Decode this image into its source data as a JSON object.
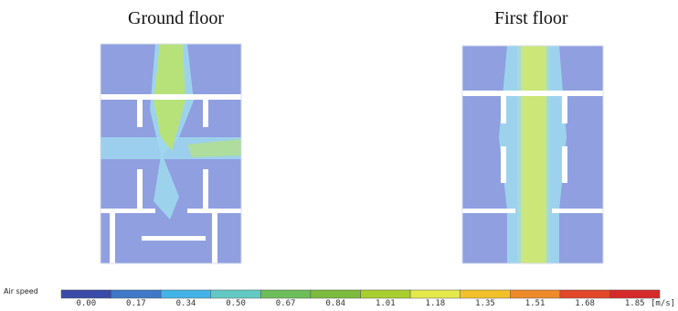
{
  "titles": {
    "ground": "Ground floor",
    "first": "First floor"
  },
  "legend": {
    "label": "Air speed",
    "unit": "[m/s]",
    "ticks": [
      "0.00",
      "0.17",
      "0.34",
      "0.50",
      "0.67",
      "0.84",
      "1.01",
      "1.18",
      "1.35",
      "1.51",
      "1.68",
      "1.85"
    ],
    "colors": [
      "#3a4aa8",
      "#3f78c8",
      "#42b3e6",
      "#62c9c4",
      "#6dbe5a",
      "#7dbb3c",
      "#a9cf2e",
      "#e5e84a",
      "#f2c12a",
      "#ee8a2a",
      "#e2472a",
      "#d62a2a"
    ]
  },
  "palette": {
    "room": "#8f9fe0",
    "wall": "#ffffff",
    "plume": "#b7e27a",
    "halo": "#9fd7ee"
  }
}
